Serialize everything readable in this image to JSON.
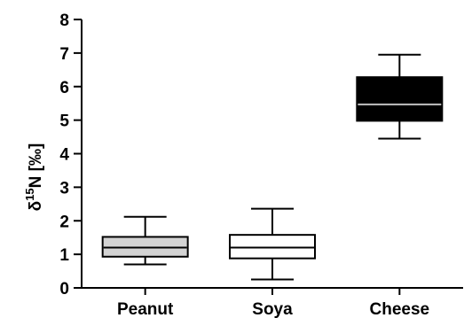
{
  "chart_data": {
    "type": "boxplot",
    "title": "",
    "xlabel": "",
    "ylabel": {
      "symbol": "δ",
      "superscript": "15",
      "rest": "N [‰]"
    },
    "ylim": [
      0,
      8
    ],
    "yticks": [
      0,
      1,
      2,
      3,
      4,
      5,
      6,
      7,
      8
    ],
    "grid": false,
    "legend": "none",
    "categories": [
      "Peanut",
      "Soya",
      "Cheese"
    ],
    "boxes": [
      {
        "category": "Peanut",
        "min": 0.7,
        "q1": 0.93,
        "median": 1.2,
        "q3": 1.52,
        "max": 2.12,
        "fill": "#d3d3d3"
      },
      {
        "category": "Soya",
        "min": 0.25,
        "q1": 0.88,
        "median": 1.2,
        "q3": 1.58,
        "max": 2.36,
        "fill": "#ffffff"
      },
      {
        "category": "Cheese",
        "min": 4.45,
        "q1": 4.98,
        "median": 5.47,
        "q3": 6.28,
        "max": 6.95,
        "fill": "#000000",
        "median_color": "#c0c0c0"
      }
    ]
  }
}
